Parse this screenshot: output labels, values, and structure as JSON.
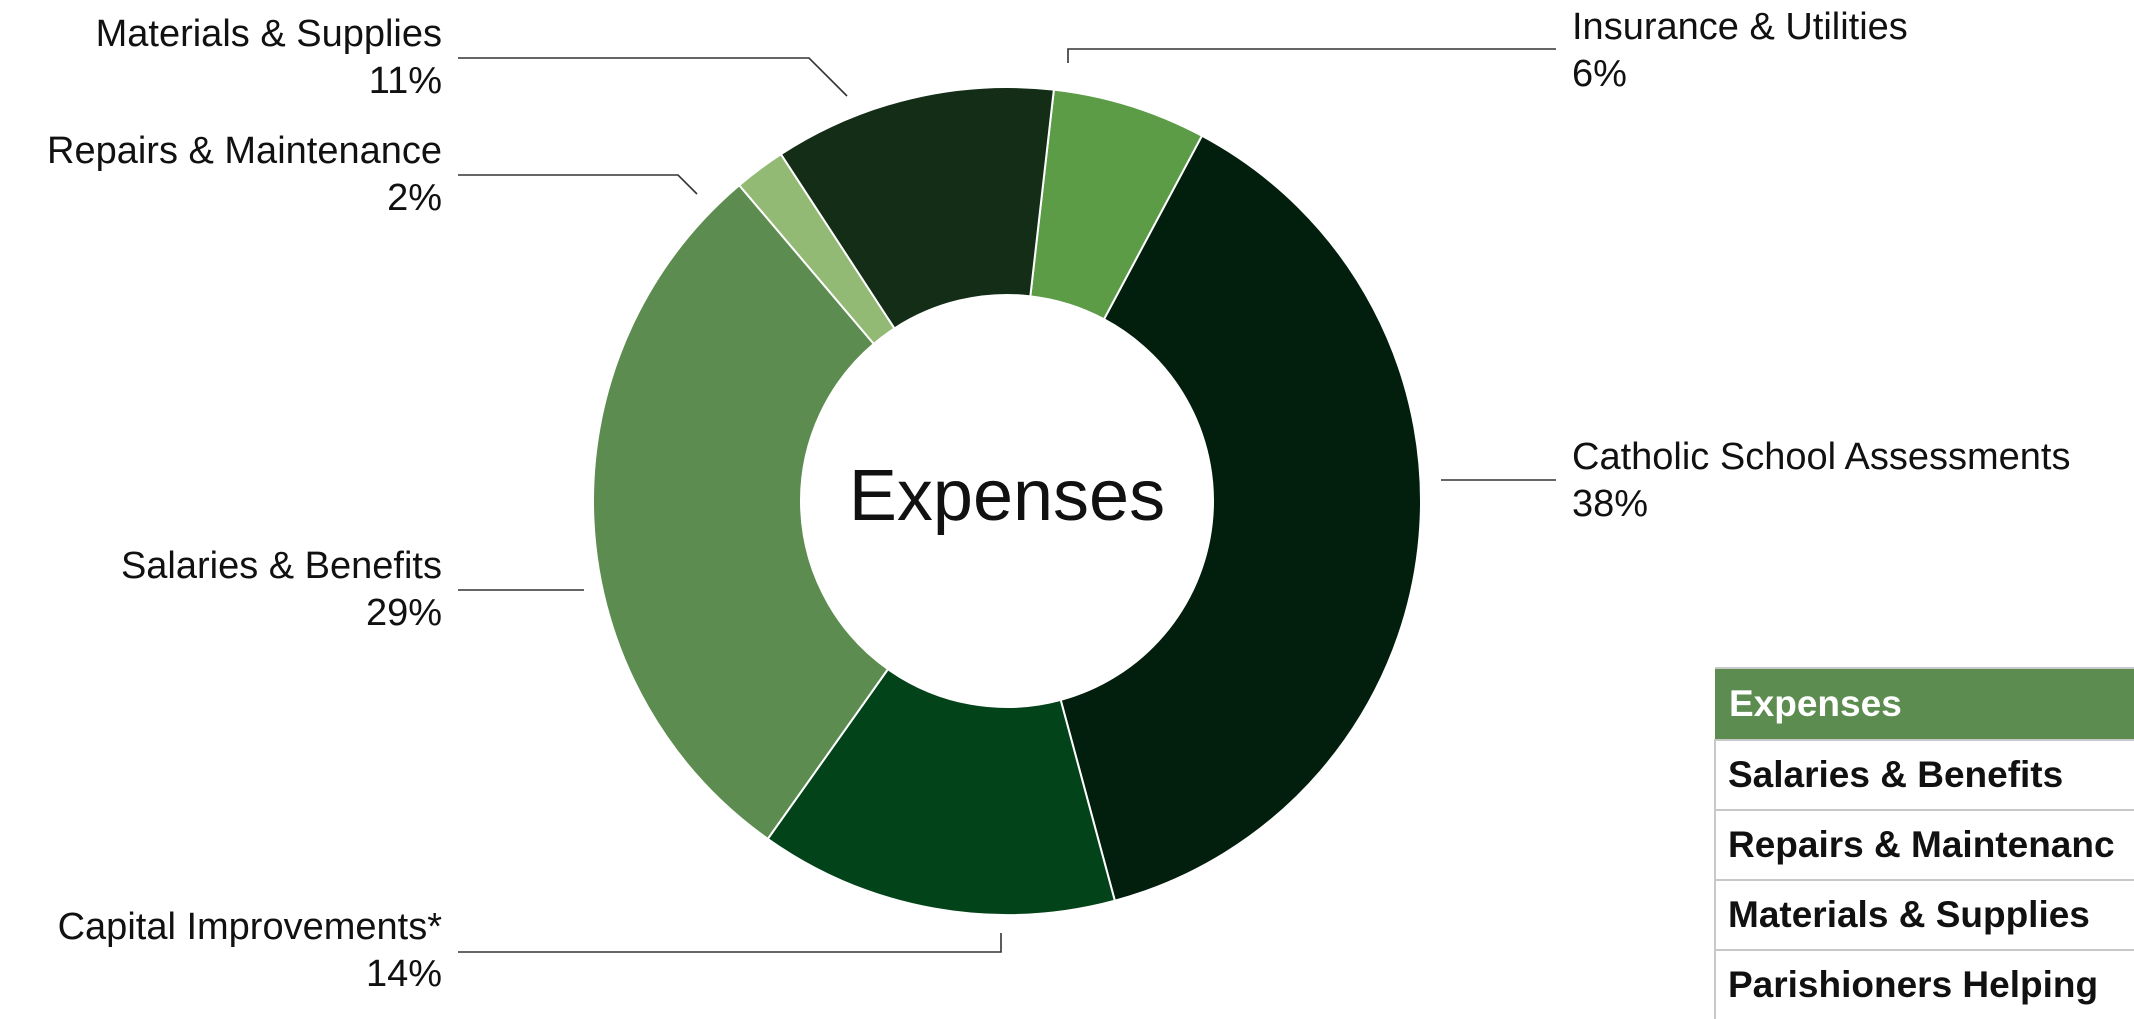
{
  "chart_data": {
    "type": "pie",
    "title": "Expenses",
    "donut": true,
    "slices": [
      {
        "label": "Insurance & Utilities",
        "percent_label": "6%",
        "value": 6,
        "color": "#5c9c46"
      },
      {
        "label": "Catholic School Assessments",
        "percent_label": "38%",
        "value": 38,
        "color": "#021e0d"
      },
      {
        "label": "Capital Improvements*",
        "percent_label": "14%",
        "value": 14,
        "color": "#02431a"
      },
      {
        "label": "Salaries & Benefits",
        "percent_label": "29%",
        "value": 29,
        "color": "#5c8c4f"
      },
      {
        "label": "Repairs & Maintenance",
        "percent_label": "2%",
        "value": 2,
        "color": "#93ba74"
      },
      {
        "label": "Materials & Supplies",
        "percent_label": "11%",
        "value": 11,
        "color": "#132d17"
      }
    ]
  },
  "table": {
    "header": "Expenses",
    "header_color": "#5c8c4f",
    "rows": [
      "Salaries & Benefits",
      "Repairs & Maintenanc",
      "Materials & Supplies",
      "Parishioners Helping"
    ]
  }
}
